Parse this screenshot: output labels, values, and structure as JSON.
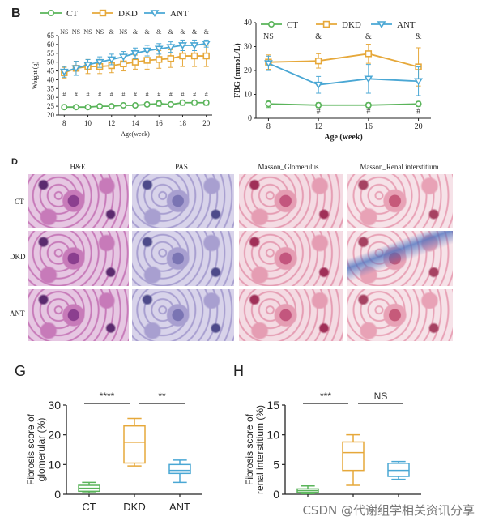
{
  "panels": {
    "b": {
      "letter": "B"
    },
    "d": {
      "letter": "D"
    },
    "g": {
      "letter": "G"
    },
    "h": {
      "letter": "H"
    }
  },
  "legend": {
    "ct": "CT",
    "dkd": "DKD",
    "ant": "ANT"
  },
  "colors": {
    "ct": "#5ab45a",
    "dkd": "#e6a83a",
    "ant": "#4aa7d4",
    "axis": "#222222",
    "sig": "#444444"
  },
  "histology": {
    "columns": [
      "H&E",
      "PAS",
      "Masson_Glomerulus",
      "Masson_Renal interstitium"
    ],
    "rows": [
      "CT",
      "DKD",
      "ANT"
    ]
  },
  "watermark": "CSDN @代谢组学相关资讯分享",
  "chart_data": [
    {
      "id": "weight",
      "type": "line",
      "title": "",
      "xlabel": "Age(week)",
      "ylabel": "Weight (g)",
      "x": [
        8,
        9,
        10,
        11,
        12,
        13,
        14,
        15,
        16,
        17,
        18,
        19,
        20
      ],
      "xticks": [
        8,
        10,
        12,
        14,
        16,
        18,
        20
      ],
      "xlim": [
        7.5,
        20.5
      ],
      "ylim": [
        20,
        65
      ],
      "yticks": [
        20,
        25,
        30,
        35,
        40,
        45,
        50,
        55,
        60,
        65
      ],
      "sig_top": [
        "NS",
        "NS",
        "NS",
        "NS",
        "&",
        "NS",
        "&",
        "&",
        "&",
        "&",
        "&",
        "&",
        "&"
      ],
      "sig_bottom": [
        "#",
        "#",
        "#",
        "#",
        "#",
        "#",
        "#",
        "#",
        "#",
        "#",
        "#",
        "#",
        "#"
      ],
      "series": [
        {
          "name": "CT",
          "key": "ct",
          "marker": "circle",
          "values": [
            24.5,
            24.5,
            24.5,
            25,
            25,
            25.5,
            25.5,
            26,
            26.5,
            26,
            27,
            27,
            27
          ],
          "err": [
            1,
            1,
            1,
            1,
            1,
            1,
            1,
            1,
            1.5,
            1,
            1.5,
            1.5,
            1.5
          ]
        },
        {
          "name": "DKD",
          "key": "dkd",
          "marker": "square",
          "values": [
            44,
            46.5,
            47.5,
            47.5,
            48,
            49,
            50,
            51,
            51.5,
            52,
            53.5,
            53.5,
            53.5
          ],
          "err": [
            3,
            4,
            4,
            4,
            4,
            4,
            4,
            5,
            5,
            5,
            6,
            6,
            6
          ]
        },
        {
          "name": "ANT",
          "key": "ant",
          "marker": "triangle",
          "values": [
            44.5,
            46.5,
            48.5,
            50,
            51.5,
            53,
            55,
            56.5,
            57.5,
            58.5,
            59.5,
            59.5,
            60.5
          ],
          "err": [
            3,
            4,
            3,
            3,
            3,
            3,
            3,
            3,
            3,
            3,
            3,
            3,
            2
          ]
        }
      ]
    },
    {
      "id": "fbg",
      "type": "line",
      "title": "",
      "xlabel": "Age  (week)",
      "ylabel": "FBG (mmoL/L)",
      "x": [
        8,
        12,
        16,
        20
      ],
      "xticks": [
        8,
        12,
        16,
        20
      ],
      "xlim": [
        7,
        21
      ],
      "ylim": [
        0,
        40
      ],
      "yticks": [
        0,
        10,
        20,
        30,
        40
      ],
      "sig_top": [
        "NS",
        "&",
        "&",
        "&"
      ],
      "sig_bottom": [
        "",
        "#",
        "#",
        "#"
      ],
      "series": [
        {
          "name": "CT",
          "key": "ct",
          "marker": "circle",
          "values": [
            6,
            5.5,
            5.5,
            6
          ],
          "err": [
            1.5,
            1,
            1,
            1
          ]
        },
        {
          "name": "DKD",
          "key": "dkd",
          "marker": "square",
          "values": [
            23.5,
            24,
            27,
            21.5
          ],
          "err": [
            3,
            3,
            4,
            8
          ]
        },
        {
          "name": "ANT",
          "key": "ant",
          "marker": "triangle",
          "values": [
            23,
            14,
            16.5,
            15.5
          ],
          "err": [
            3,
            3.5,
            6,
            6
          ]
        }
      ]
    },
    {
      "id": "glomerular",
      "type": "box",
      "ylabel": "Fibrosis score of glomerular (%)",
      "ylabel_lines": [
        "Fibrosis score of",
        "glomerular (%)"
      ],
      "ylim": [
        0,
        30
      ],
      "yticks": [
        0,
        10,
        20,
        30
      ],
      "categories": [
        "CT",
        "DKD",
        "ANT"
      ],
      "boxes": [
        {
          "key": "ct",
          "min": 0.5,
          "q1": 1,
          "median": 2,
          "q3": 3,
          "max": 4
        },
        {
          "key": "dkd",
          "min": 9.5,
          "q1": 10.5,
          "median": 17.5,
          "q3": 23,
          "max": 25.5
        },
        {
          "key": "ant",
          "min": 4,
          "q1": 7,
          "median": 8,
          "q3": 10,
          "max": 11.5
        }
      ],
      "sig": [
        {
          "from": 0,
          "to": 1,
          "label": "****"
        },
        {
          "from": 1,
          "to": 2,
          "label": "**"
        }
      ]
    },
    {
      "id": "interstitium",
      "type": "box",
      "ylabel": "Fibrosis score of renal interstitium (%)",
      "ylabel_lines": [
        "Fibrosis score of",
        "renal interstitium (%)"
      ],
      "ylim": [
        0,
        15
      ],
      "yticks": [
        0,
        5,
        10,
        15
      ],
      "categories": [
        "",
        "",
        ""
      ],
      "boxes": [
        {
          "key": "ct",
          "min": 0.1,
          "q1": 0.3,
          "median": 0.6,
          "q3": 0.9,
          "max": 1.4
        },
        {
          "key": "dkd",
          "min": 1.5,
          "q1": 4,
          "median": 7,
          "q3": 8.8,
          "max": 10
        },
        {
          "key": "ant",
          "min": 2.5,
          "q1": 3,
          "median": 4,
          "q3": 5.2,
          "max": 5.5
        }
      ],
      "sig": [
        {
          "from": 0,
          "to": 1,
          "label": "***"
        },
        {
          "from": 1,
          "to": 2,
          "label": "NS"
        }
      ]
    }
  ]
}
